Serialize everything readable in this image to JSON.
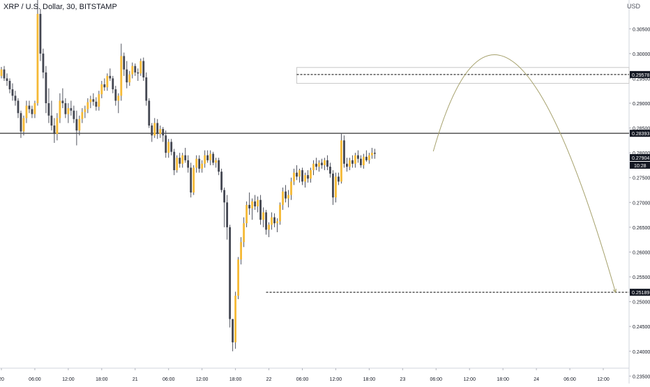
{
  "header": {
    "symbol_title": "XRP / U.S. Dollar, 30, BITSTAMP",
    "currency_label": "USD"
  },
  "chart_data": {
    "type": "candlestick",
    "title": "XRP / U.S. Dollar, 30, BITSTAMP",
    "xlabel": "",
    "ylabel": "",
    "y_axis_side": "right",
    "ylim": [
      0.2335,
      0.3108
    ],
    "y_ticks": [
      "0.30500",
      "0.30000",
      "0.29500",
      "0.29000",
      "0.28500",
      "0.28000",
      "0.27500",
      "0.27000",
      "0.26500",
      "0.26000",
      "0.25500",
      "0.25000",
      "0.24500",
      "0.24000",
      "0.23500"
    ],
    "x_time_start_hours": 0,
    "x_time_end_hours": 155,
    "x_tick_labels": [
      {
        "label": "20",
        "hour": 0
      },
      {
        "label": "06:00",
        "hour": 6
      },
      {
        "label": "12:00",
        "hour": 12
      },
      {
        "label": "18:00",
        "hour": 18
      },
      {
        "label": "21",
        "hour": 24
      },
      {
        "label": "06:00",
        "hour": 30
      },
      {
        "label": "12:00",
        "hour": 36
      },
      {
        "label": "18:00",
        "hour": 42
      },
      {
        "label": "22",
        "hour": 48
      },
      {
        "label": "06:00",
        "hour": 54
      },
      {
        "label": "12:00",
        "hour": 60
      },
      {
        "label": "18:00",
        "hour": 66
      },
      {
        "label": "23",
        "hour": 72
      },
      {
        "label": "06:00",
        "hour": 78
      },
      {
        "label": "12:00",
        "hour": 84
      },
      {
        "label": "18:00",
        "hour": 90
      },
      {
        "label": "24",
        "hour": 96
      },
      {
        "label": "06:00",
        "hour": 102
      },
      {
        "label": "12:00",
        "hour": 108
      }
    ],
    "candle_step_hours": 0.5,
    "candles": [
      [
        0.2955,
        0.2973,
        0.295,
        0.2968
      ],
      [
        0.2968,
        0.2975,
        0.2945,
        0.295
      ],
      [
        0.295,
        0.296,
        0.2935,
        0.2945
      ],
      [
        0.2945,
        0.295,
        0.292,
        0.2928
      ],
      [
        0.2928,
        0.294,
        0.2905,
        0.2915
      ],
      [
        0.2915,
        0.2925,
        0.2895,
        0.2905
      ],
      [
        0.2905,
        0.291,
        0.287,
        0.288
      ],
      [
        0.288,
        0.2885,
        0.283,
        0.2843
      ],
      [
        0.2843,
        0.2875,
        0.2835,
        0.287
      ],
      [
        0.287,
        0.2905,
        0.286,
        0.2895
      ],
      [
        0.2895,
        0.2905,
        0.288,
        0.2888
      ],
      [
        0.2888,
        0.2895,
        0.287,
        0.2878
      ],
      [
        0.2878,
        0.2905,
        0.287,
        0.29
      ],
      [
        0.29,
        0.3118,
        0.2895,
        0.308
      ],
      [
        0.308,
        0.309,
        0.2985,
        0.3
      ],
      [
        0.3,
        0.301,
        0.295,
        0.2962
      ],
      [
        0.2962,
        0.2975,
        0.288,
        0.29
      ],
      [
        0.29,
        0.293,
        0.286,
        0.2875
      ],
      [
        0.2875,
        0.2905,
        0.2845,
        0.2855
      ],
      [
        0.2855,
        0.287,
        0.282,
        0.2838
      ],
      [
        0.2838,
        0.288,
        0.2825,
        0.287
      ],
      [
        0.287,
        0.292,
        0.286,
        0.2905
      ],
      [
        0.2905,
        0.293,
        0.289,
        0.29
      ],
      [
        0.29,
        0.291,
        0.287,
        0.2878
      ],
      [
        0.2878,
        0.29,
        0.286,
        0.289
      ],
      [
        0.289,
        0.2905,
        0.2875,
        0.2885
      ],
      [
        0.2885,
        0.2895,
        0.286,
        0.2868
      ],
      [
        0.2868,
        0.2885,
        0.2815,
        0.2845
      ],
      [
        0.2845,
        0.2875,
        0.2835,
        0.2868
      ],
      [
        0.2868,
        0.289,
        0.286,
        0.2882
      ],
      [
        0.2882,
        0.2895,
        0.287,
        0.2888
      ],
      [
        0.2888,
        0.291,
        0.288,
        0.2902
      ],
      [
        0.2902,
        0.2915,
        0.289,
        0.2908
      ],
      [
        0.2908,
        0.292,
        0.2895,
        0.2903
      ],
      [
        0.2903,
        0.2912,
        0.2885,
        0.2893
      ],
      [
        0.2893,
        0.2925,
        0.2885,
        0.2918
      ],
      [
        0.2918,
        0.2945,
        0.291,
        0.2938
      ],
      [
        0.2938,
        0.295,
        0.2925,
        0.2932
      ],
      [
        0.2932,
        0.296,
        0.2925,
        0.2955
      ],
      [
        0.2955,
        0.297,
        0.2945,
        0.295
      ],
      [
        0.295,
        0.2955,
        0.292,
        0.2928
      ],
      [
        0.2928,
        0.2935,
        0.2895,
        0.2905
      ],
      [
        0.2905,
        0.292,
        0.288,
        0.2915
      ],
      [
        0.2915,
        0.302,
        0.2905,
        0.2995
      ],
      [
        0.2995,
        0.3002,
        0.2955,
        0.2968
      ],
      [
        0.2968,
        0.2985,
        0.293,
        0.2942
      ],
      [
        0.2942,
        0.2965,
        0.2935,
        0.2958
      ],
      [
        0.2958,
        0.2982,
        0.295,
        0.2975
      ],
      [
        0.2975,
        0.298,
        0.2955,
        0.2962
      ],
      [
        0.2962,
        0.297,
        0.2945,
        0.296
      ],
      [
        0.296,
        0.299,
        0.2955,
        0.2985
      ],
      [
        0.2985,
        0.2992,
        0.2945,
        0.2952
      ],
      [
        0.2952,
        0.2962,
        0.2895,
        0.2905
      ],
      [
        0.2905,
        0.291,
        0.285,
        0.2855
      ],
      [
        0.2855,
        0.286,
        0.2822,
        0.2835
      ],
      [
        0.2835,
        0.287,
        0.283,
        0.286
      ],
      [
        0.286,
        0.2868,
        0.2828,
        0.2838
      ],
      [
        0.2838,
        0.2855,
        0.283,
        0.2848
      ],
      [
        0.2848,
        0.2852,
        0.2822,
        0.2835
      ],
      [
        0.2835,
        0.2845,
        0.279,
        0.28
      ],
      [
        0.28,
        0.2828,
        0.279,
        0.2822
      ],
      [
        0.2822,
        0.2828,
        0.2795,
        0.2802
      ],
      [
        0.2802,
        0.2808,
        0.2755,
        0.2765
      ],
      [
        0.2765,
        0.2795,
        0.276,
        0.279
      ],
      [
        0.279,
        0.28,
        0.277,
        0.2778
      ],
      [
        0.2778,
        0.28,
        0.277,
        0.2795
      ],
      [
        0.2795,
        0.281,
        0.278,
        0.2785
      ],
      [
        0.2785,
        0.2795,
        0.276,
        0.277
      ],
      [
        0.277,
        0.278,
        0.271,
        0.272
      ],
      [
        0.272,
        0.2775,
        0.2715,
        0.277
      ],
      [
        0.277,
        0.2795,
        0.276,
        0.2788
      ],
      [
        0.2788,
        0.2795,
        0.276,
        0.2768
      ],
      [
        0.2768,
        0.2785,
        0.276,
        0.2778
      ],
      [
        0.2778,
        0.2805,
        0.277,
        0.2795
      ],
      [
        0.2795,
        0.2805,
        0.278,
        0.2785
      ],
      [
        0.2785,
        0.2805,
        0.2775,
        0.2798
      ],
      [
        0.2798,
        0.2802,
        0.2775,
        0.278
      ],
      [
        0.278,
        0.279,
        0.277,
        0.2785
      ],
      [
        0.2785,
        0.279,
        0.2755,
        0.2762
      ],
      [
        0.2762,
        0.2768,
        0.272,
        0.2725
      ],
      [
        0.2725,
        0.273,
        0.265,
        0.27
      ],
      [
        0.27,
        0.2715,
        0.2625,
        0.265
      ],
      [
        0.265,
        0.2655,
        0.2448,
        0.2465
      ],
      [
        0.2465,
        0.246,
        0.24,
        0.2418
      ],
      [
        0.2418,
        0.252,
        0.2405,
        0.2512
      ],
      [
        0.2512,
        0.259,
        0.2505,
        0.2585
      ],
      [
        0.2585,
        0.263,
        0.2575,
        0.262
      ],
      [
        0.262,
        0.267,
        0.261,
        0.2658
      ],
      [
        0.2658,
        0.2702,
        0.265,
        0.2695
      ],
      [
        0.2695,
        0.272,
        0.2675,
        0.2688
      ],
      [
        0.2688,
        0.2708,
        0.2665,
        0.2702
      ],
      [
        0.2702,
        0.2715,
        0.2685,
        0.2692
      ],
      [
        0.2692,
        0.2712,
        0.268,
        0.2705
      ],
      [
        0.2705,
        0.2715,
        0.2655,
        0.2665
      ],
      [
        0.2665,
        0.269,
        0.265,
        0.268
      ],
      [
        0.268,
        0.2685,
        0.2635,
        0.2645
      ],
      [
        0.2645,
        0.266,
        0.263,
        0.2655
      ],
      [
        0.2655,
        0.268,
        0.2645,
        0.267
      ],
      [
        0.267,
        0.2678,
        0.265,
        0.2658
      ],
      [
        0.2658,
        0.2668,
        0.264,
        0.2662
      ],
      [
        0.2662,
        0.27,
        0.2655,
        0.2695
      ],
      [
        0.2695,
        0.273,
        0.2685,
        0.2722
      ],
      [
        0.2722,
        0.2735,
        0.27,
        0.2708
      ],
      [
        0.2708,
        0.2725,
        0.269,
        0.2715
      ],
      [
        0.2715,
        0.275,
        0.2705,
        0.2742
      ],
      [
        0.2742,
        0.2768,
        0.2735,
        0.276
      ],
      [
        0.276,
        0.2775,
        0.2745,
        0.2752
      ],
      [
        0.2752,
        0.2768,
        0.274,
        0.2765
      ],
      [
        0.2765,
        0.277,
        0.2735,
        0.2742
      ],
      [
        0.2742,
        0.276,
        0.273,
        0.2755
      ],
      [
        0.2755,
        0.2765,
        0.274,
        0.2748
      ],
      [
        0.2748,
        0.277,
        0.274,
        0.2765
      ],
      [
        0.2765,
        0.2785,
        0.2755,
        0.2778
      ],
      [
        0.2778,
        0.279,
        0.2765,
        0.2772
      ],
      [
        0.2772,
        0.2785,
        0.2762,
        0.278
      ],
      [
        0.278,
        0.2788,
        0.2768,
        0.2775
      ],
      [
        0.2775,
        0.279,
        0.2765,
        0.2785
      ],
      [
        0.2785,
        0.2795,
        0.2765,
        0.2772
      ],
      [
        0.2772,
        0.278,
        0.275,
        0.2758
      ],
      [
        0.2758,
        0.2765,
        0.2695,
        0.271
      ],
      [
        0.271,
        0.276,
        0.27,
        0.2752
      ],
      [
        0.2752,
        0.276,
        0.2735,
        0.2742
      ],
      [
        0.2742,
        0.284,
        0.2738,
        0.2825
      ],
      [
        0.2825,
        0.2835,
        0.277,
        0.2778
      ],
      [
        0.2778,
        0.279,
        0.2762,
        0.2772
      ],
      [
        0.2772,
        0.279,
        0.2765,
        0.2785
      ],
      [
        0.2785,
        0.2795,
        0.277,
        0.2778
      ],
      [
        0.2778,
        0.28,
        0.277,
        0.2795
      ],
      [
        0.2795,
        0.2805,
        0.278,
        0.2788
      ],
      [
        0.2788,
        0.2795,
        0.277,
        0.2775
      ],
      [
        0.2775,
        0.2798,
        0.2768,
        0.2792
      ],
      [
        0.2792,
        0.2805,
        0.2782,
        0.2785
      ],
      [
        0.2785,
        0.28,
        0.2778,
        0.2795
      ],
      [
        0.2795,
        0.281,
        0.2788,
        0.28
      ],
      [
        0.28,
        0.2808,
        0.2788,
        0.2798
      ]
    ],
    "horizontal_levels": [
      {
        "value": 0.28393,
        "label": "0.28393",
        "style": "solid",
        "color": "#000000"
      },
      {
        "value": 0.29578,
        "label": "0.29578",
        "style": "dashed",
        "color": "#000000",
        "start_hour": 53
      },
      {
        "value": 0.25189,
        "label": "0.25189",
        "style": "dashed",
        "color": "#000000",
        "start_hour": 47.5
      }
    ],
    "zone": {
      "top": 0.2972,
      "bottom": 0.294,
      "start_hour": 53
    },
    "current_price": {
      "value": 0.27904,
      "label": "0.27904",
      "countdown": "10:28"
    },
    "projection": {
      "color": "#a5a06b",
      "points": [
        [
          77.5,
          0.2803
        ],
        [
          92,
          0.2982
        ],
        [
          110.2,
          0.25189
        ]
      ]
    },
    "colors": {
      "up": "#f5b935",
      "down": "#434651",
      "wick": "#50535e",
      "axis_text": "#131722",
      "price_label_bg": "#131722",
      "price_label_text": "#ffffff"
    }
  }
}
